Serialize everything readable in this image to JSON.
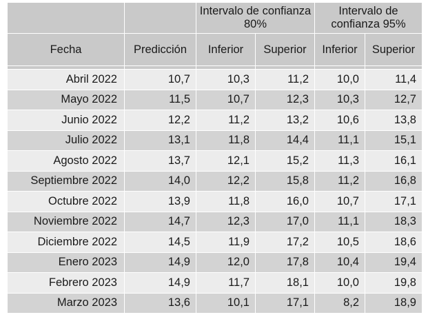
{
  "table": {
    "header": {
      "fecha": "Fecha",
      "prediccion": "Predicción",
      "group_80": "Intervalo de confianza 80%",
      "group_95": "Intervalo de confianza 95%",
      "inferior_80": "Inferior",
      "superior_80": "Superior",
      "inferior_95": "Inferior",
      "superior_95": "Superior"
    },
    "rows": [
      {
        "fecha": "Abril 2022",
        "prediccion": "10,7",
        "inf80": "10,3",
        "sup80": "11,2",
        "inf95": "10,0",
        "sup95": "11,4"
      },
      {
        "fecha": "Mayo 2022",
        "prediccion": "11,5",
        "inf80": "10,7",
        "sup80": "12,3",
        "inf95": "10,3",
        "sup95": "12,7"
      },
      {
        "fecha": "Junio 2022",
        "prediccion": "12,2",
        "inf80": "11,2",
        "sup80": "13,2",
        "inf95": "10,6",
        "sup95": "13,8"
      },
      {
        "fecha": "Julio 2022",
        "prediccion": "13,1",
        "inf80": "11,8",
        "sup80": "14,4",
        "inf95": "11,1",
        "sup95": "15,1"
      },
      {
        "fecha": "Agosto 2022",
        "prediccion": "13,7",
        "inf80": "12,1",
        "sup80": "15,2",
        "inf95": "11,3",
        "sup95": "16,1"
      },
      {
        "fecha": "Septiembre 2022",
        "prediccion": "14,0",
        "inf80": "12,2",
        "sup80": "15,8",
        "inf95": "11,2",
        "sup95": "16,8"
      },
      {
        "fecha": "Octubre 2022",
        "prediccion": "13,9",
        "inf80": "11,8",
        "sup80": "16,0",
        "inf95": "10,7",
        "sup95": "17,1"
      },
      {
        "fecha": "Noviembre 2022",
        "prediccion": "14,7",
        "inf80": "12,3",
        "sup80": "17,0",
        "inf95": "11,1",
        "sup95": "18,3"
      },
      {
        "fecha": "Diciembre 2022",
        "prediccion": "14,5",
        "inf80": "11,9",
        "sup80": "17,2",
        "inf95": "10,5",
        "sup95": "18,6"
      },
      {
        "fecha": "Enero 2023",
        "prediccion": "14,9",
        "inf80": "12,0",
        "sup80": "17,8",
        "inf95": "10,4",
        "sup95": "19,4"
      },
      {
        "fecha": "Febrero 2023",
        "prediccion": "14,9",
        "inf80": "11,7",
        "sup80": "18,1",
        "inf95": "10,0",
        "sup95": "19,8"
      },
      {
        "fecha": "Marzo 2023",
        "prediccion": "13,6",
        "inf80": "10,1",
        "sup80": "17,1",
        "inf95": "8,2",
        "sup95": "18,9"
      }
    ]
  }
}
